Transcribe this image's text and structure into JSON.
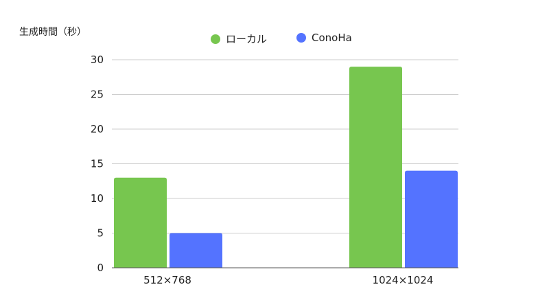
{
  "chart_data": {
    "type": "bar",
    "title": "",
    "xlabel": "",
    "ylabel": "生成時間（秒）",
    "categories": [
      "512×768",
      "1024×1024"
    ],
    "series": [
      {
        "name": "ローカル",
        "values": [
          13,
          29
        ],
        "color": "#77c64f"
      },
      {
        "name": "ConoHa",
        "values": [
          5,
          14
        ],
        "color": "#5473ff"
      }
    ],
    "ylim": [
      0,
      30
    ],
    "yticks": [
      0,
      5,
      10,
      15,
      20,
      25,
      30
    ],
    "grid": true,
    "legend_position": "top-center"
  }
}
